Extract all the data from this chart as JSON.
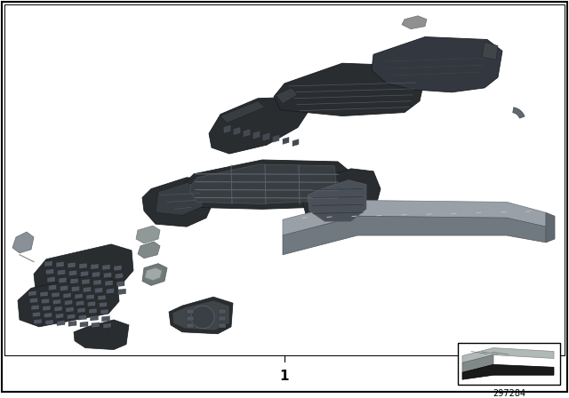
{
  "background_color": "#ffffff",
  "border_color": "#000000",
  "part_number": "297284",
  "label_number": "1",
  "fig_width": 6.4,
  "fig_height": 4.48,
  "dpi": 100
}
